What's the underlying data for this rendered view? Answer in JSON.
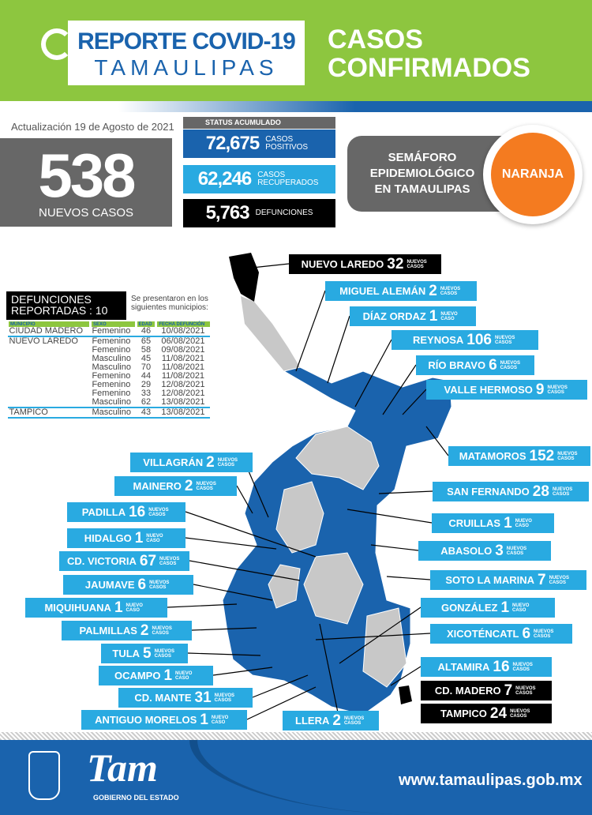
{
  "header": {
    "title_line1": "REPORTE COVID-19",
    "title_line2": "TAMAULIPAS",
    "section_line1": "CASOS",
    "section_line2": "CONFIRMADOS"
  },
  "update": "Actualización 19 de Agosto de 2021",
  "new_cases": {
    "value": "538",
    "label": "NUEVOS CASOS"
  },
  "status": {
    "title": "STATUS ACUMULADO",
    "items": [
      {
        "value": "72,675",
        "label": "CASOS POSITIVOS",
        "color": "#1a63ad"
      },
      {
        "value": "62,246",
        "label": "CASOS RECUPERADOS",
        "color": "#29aae1"
      },
      {
        "value": "5,763",
        "label": "DEFUNCIONES",
        "color": "#000000"
      }
    ]
  },
  "semaforo": {
    "label_line1": "SEMÁFORO",
    "label_line2": "EPIDEMIOLÓGICO",
    "label_line3": "EN TAMAULIPAS",
    "level": "NARANJA",
    "color": "#f47b20"
  },
  "deaths": {
    "title_line1": "DEFUNCIONES",
    "title_line2": "REPORTADAS : 10",
    "note": "Se presentaron en los siguientes municipios:",
    "headers": [
      "MUNICIPIO",
      "SEXO",
      "EDAD",
      "FECHA DEFUNCIÓN"
    ],
    "rows": [
      [
        "CIUDAD MADERO",
        "Femenino",
        "46",
        "10/08/2021"
      ],
      [
        "NUEVO LAREDO",
        "Femenino",
        "65",
        "06/08/2021"
      ],
      [
        "",
        "Femenino",
        "58",
        "09/08/2021"
      ],
      [
        "",
        "Masculino",
        "45",
        "11/08/2021"
      ],
      [
        "",
        "Masculino",
        "70",
        "11/08/2021"
      ],
      [
        "",
        "Femenino",
        "44",
        "11/08/2021"
      ],
      [
        "",
        "Femenino",
        "29",
        "12/08/2021"
      ],
      [
        "",
        "Femenino",
        "33",
        "12/08/2021"
      ],
      [
        "",
        "Masculino",
        "62",
        "13/08/2021"
      ],
      [
        "TAMPICO",
        "Masculino",
        "43",
        "13/08/2021"
      ]
    ]
  },
  "municipalities": [
    {
      "name": "NUEVO LAREDO",
      "count": "32",
      "unit": "NUEVOS CASOS"
    },
    {
      "name": "MIGUEL ALEMÁN",
      "count": "2",
      "unit": "NUEVOS CASOS"
    },
    {
      "name": "DÍAZ ORDAZ",
      "count": "1",
      "unit": "NUEVO CASO"
    },
    {
      "name": "REYNOSA",
      "count": "106",
      "unit": "NUEVOS CASOS"
    },
    {
      "name": "RÍO BRAVO",
      "count": "6",
      "unit": "NUEVOS CASOS"
    },
    {
      "name": "VALLE HERMOSO",
      "count": "9",
      "unit": "NUEVOS CASOS"
    },
    {
      "name": "MATAMOROS",
      "count": "152",
      "unit": "NUEVOS CASOS"
    },
    {
      "name": "SAN FERNANDO",
      "count": "28",
      "unit": "NUEVOS CASOS"
    },
    {
      "name": "CRUILLAS",
      "count": "1",
      "unit": "NUEVO CASO"
    },
    {
      "name": "ABASOLO",
      "count": "3",
      "unit": "NUEVOS CASOS"
    },
    {
      "name": "SOTO LA MARINA",
      "count": "7",
      "unit": "NUEVOS CASOS"
    },
    {
      "name": "GONZÁLEZ",
      "count": "1",
      "unit": "NUEVO CASO"
    },
    {
      "name": "XICOTÉNCATL",
      "count": "6",
      "unit": "NUEVOS CASOS"
    },
    {
      "name": "ALTAMIRA",
      "count": "16",
      "unit": "NUEVOS CASOS"
    },
    {
      "name": "CD. MADERO",
      "count": "7",
      "unit": "NUEVOS CASOS"
    },
    {
      "name": "TAMPICO",
      "count": "24",
      "unit": "NUEVOS CASOS"
    },
    {
      "name": "LLERA",
      "count": "2",
      "unit": "NUEVOS CASOS"
    },
    {
      "name": "VILLAGRÁN",
      "count": "2",
      "unit": "NUEVOS CASOS"
    },
    {
      "name": "MAINERO",
      "count": "2",
      "unit": "NUEVOS CASOS"
    },
    {
      "name": "PADILLA",
      "count": "16",
      "unit": "NUEVOS CASOS"
    },
    {
      "name": "HIDALGO",
      "count": "1",
      "unit": "NUEVO CASO"
    },
    {
      "name": "CD. VICTORIA",
      "count": "67",
      "unit": "NUEVOS CASOS"
    },
    {
      "name": "JAUMAVE",
      "count": "6",
      "unit": "NUEVOS CASOS"
    },
    {
      "name": "MIQUIHUANA",
      "count": "1",
      "unit": "NUEVO CASO"
    },
    {
      "name": "PALMILLAS",
      "count": "2",
      "unit": "NUEVOS CASOS"
    },
    {
      "name": "TULA",
      "count": "5",
      "unit": "NUEVOS CASOS"
    },
    {
      "name": "OCAMPO",
      "count": "1",
      "unit": "NUEVO CASO"
    },
    {
      "name": "CD. MANTE",
      "count": "31",
      "unit": "NUEVOS CASOS"
    },
    {
      "name": "ANTIGUO MORELOS",
      "count": "1",
      "unit": "NUEVO CASO"
    }
  ],
  "map_colors": {
    "with_cases": "#1a63ad",
    "without_cases": "#c8c8c8",
    "deaths_highlight": "#000000"
  },
  "footer": {
    "logo_text": "Tam",
    "logo_subtitle": "GOBIERNO DEL ESTADO",
    "url": "www.tamaulipas.gob.mx"
  }
}
